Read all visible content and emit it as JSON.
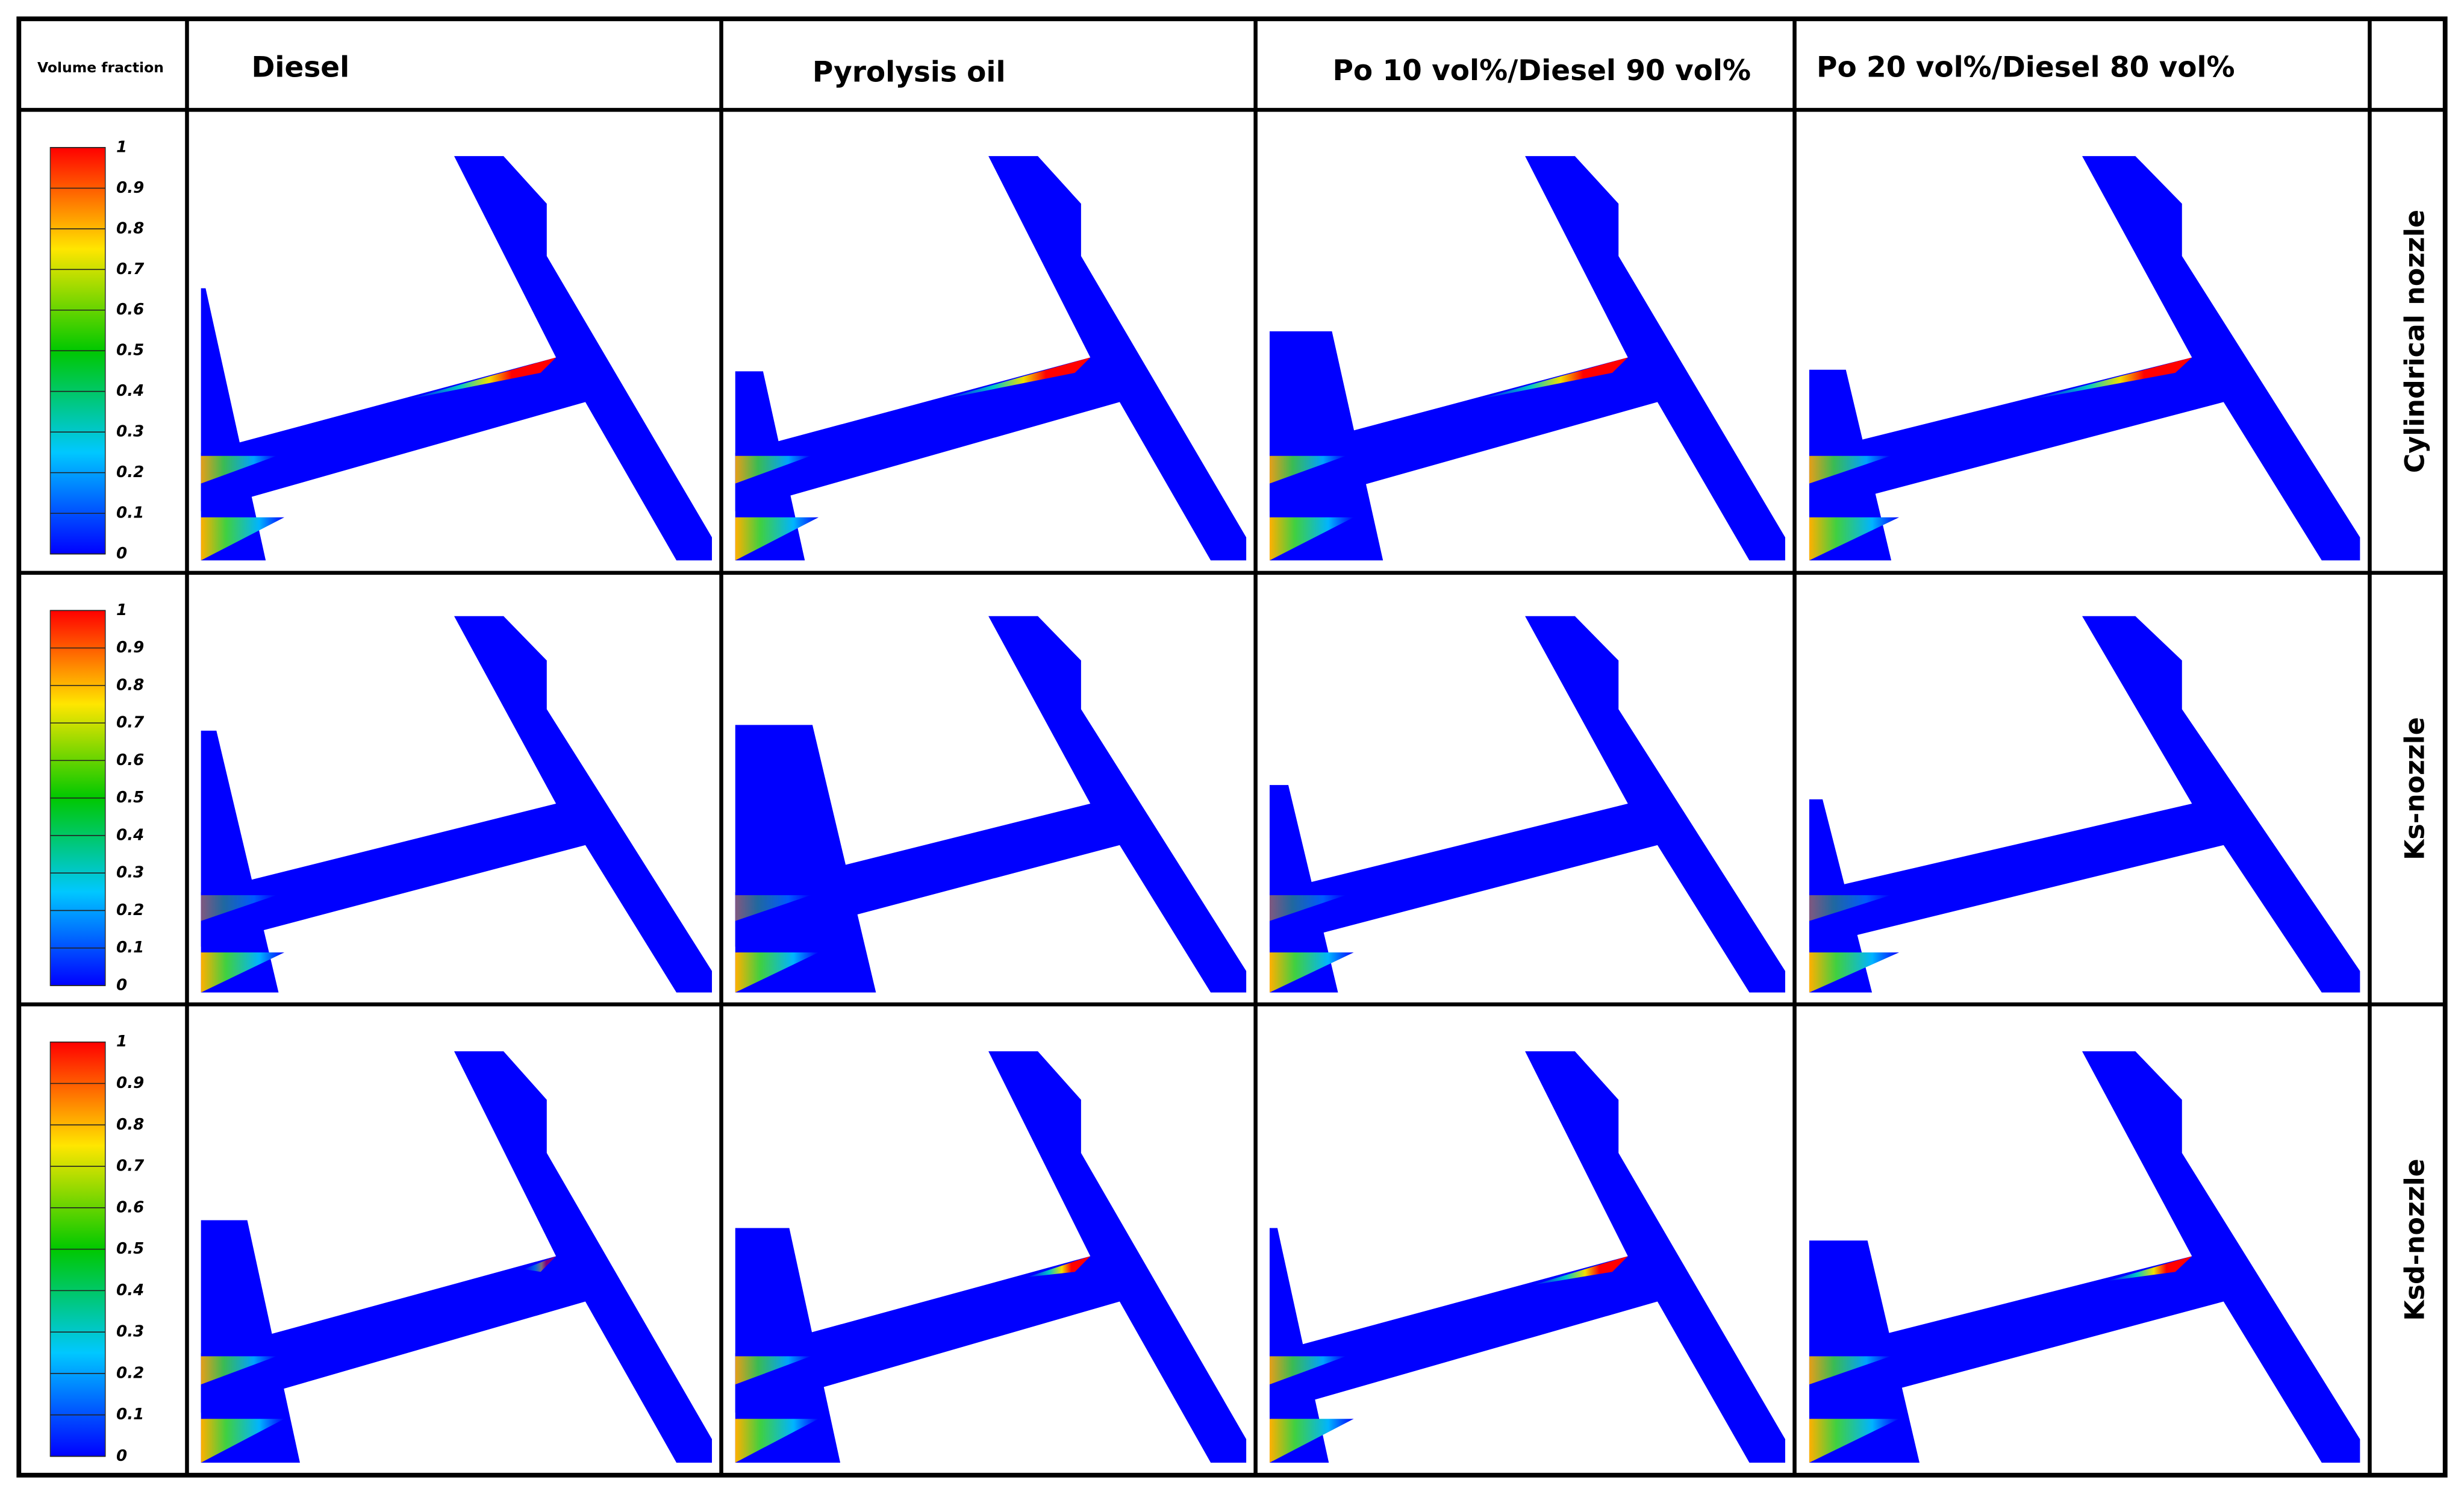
{
  "header": {
    "legend_title": "Volume fraction",
    "columns": [
      "Diesel",
      "Pyrolysis oil",
      "Po 10 vol%/Diesel 90 vol%",
      "Po 20 vol%/Diesel 80 vol%"
    ]
  },
  "rows": [
    {
      "label": "Cylindrical nozzle",
      "colorbar_ticks": [
        "1",
        "0.9",
        "0.8",
        "0.7",
        "0.6",
        "0.5",
        "0.4",
        "0.3",
        "0.2",
        "0.1",
        "0"
      ]
    },
    {
      "label": "Ks-nozzle",
      "colorbar_ticks": [
        "1",
        "0.9",
        "0.8",
        "0.7",
        "0.6",
        "0.5",
        "0.4",
        "0.3",
        "0.2",
        "0.1",
        "0"
      ]
    },
    {
      "label": "Ksd-nozzle",
      "colorbar_ticks": [
        "1",
        "0.9",
        "0.8",
        "0.7",
        "0.6",
        "0.5",
        "0.4",
        "0.3",
        "0.2",
        "0.1",
        "0"
      ]
    }
  ]
}
